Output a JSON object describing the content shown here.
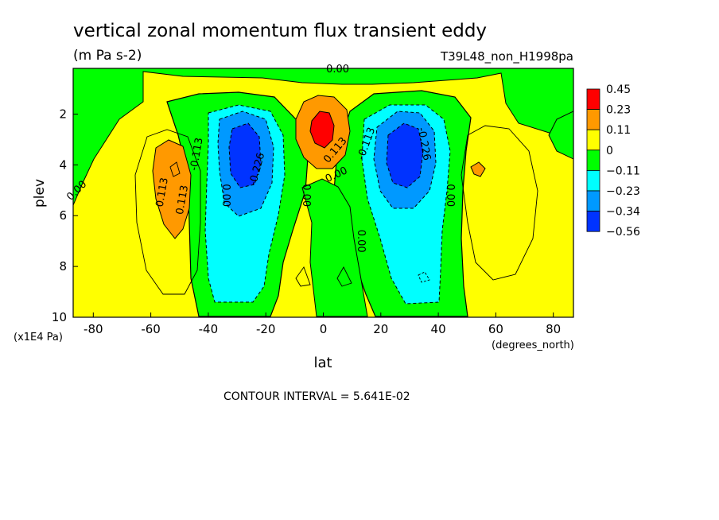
{
  "header": {
    "title": "vertical zonal momentum flux transient eddy",
    "units": "(m Pa s-2)",
    "run_id": "T39L48_non_H1998pa"
  },
  "footer": {
    "contour_interval": "CONTOUR INTERVAL = 5.641E-02"
  },
  "chart_data": {
    "type": "heatmap",
    "title": "vertical zonal momentum flux transient eddy",
    "subtitle": "(m Pa s-2)",
    "xlabel": "lat",
    "xunits": "(degrees_north)",
    "ylabel": "plev",
    "yunits": "(x1E4 Pa)",
    "xlim": [
      -87,
      87
    ],
    "ylim": [
      10,
      0.2
    ],
    "x_ticks": [
      -80,
      -60,
      -40,
      -20,
      0,
      20,
      40,
      60,
      80
    ],
    "y_ticks": [
      2,
      4,
      6,
      8,
      10
    ],
    "colorbar": {
      "labels": [
        "0.45",
        "0.23",
        "0.11",
        "0",
        "−0.11",
        "−0.23",
        "−0.34",
        "−0.56"
      ],
      "colors": [
        "#ff0000",
        "#ff9900",
        "#ffff00",
        "#00ff00",
        "#00ffff",
        "#0099ff",
        "#0033ff"
      ]
    },
    "contour_labels": [
      "0.00",
      "0.113",
      "-0.113",
      "-0.226",
      "0.00",
      "0.113",
      "0.00",
      "0.00",
      "-0.113",
      "-0.226",
      "0.00",
      "0.00",
      "0.113",
      "0.00"
    ],
    "features": [
      {
        "kind": "max",
        "lat": 0,
        "plev": 2.6,
        "value": 0.45
      },
      {
        "kind": "max",
        "lat": -53,
        "plev": 4.5,
        "value": 0.2
      },
      {
        "kind": "max",
        "lat": 54,
        "plev": 4.1,
        "value": 0.12
      },
      {
        "kind": "min",
        "lat": -28,
        "plev": 3.9,
        "value": -0.56
      },
      {
        "kind": "min",
        "lat": 29,
        "plev": 3.8,
        "value": -0.56
      }
    ],
    "contour_interval": 0.05641,
    "grid": false,
    "legend": "right"
  }
}
